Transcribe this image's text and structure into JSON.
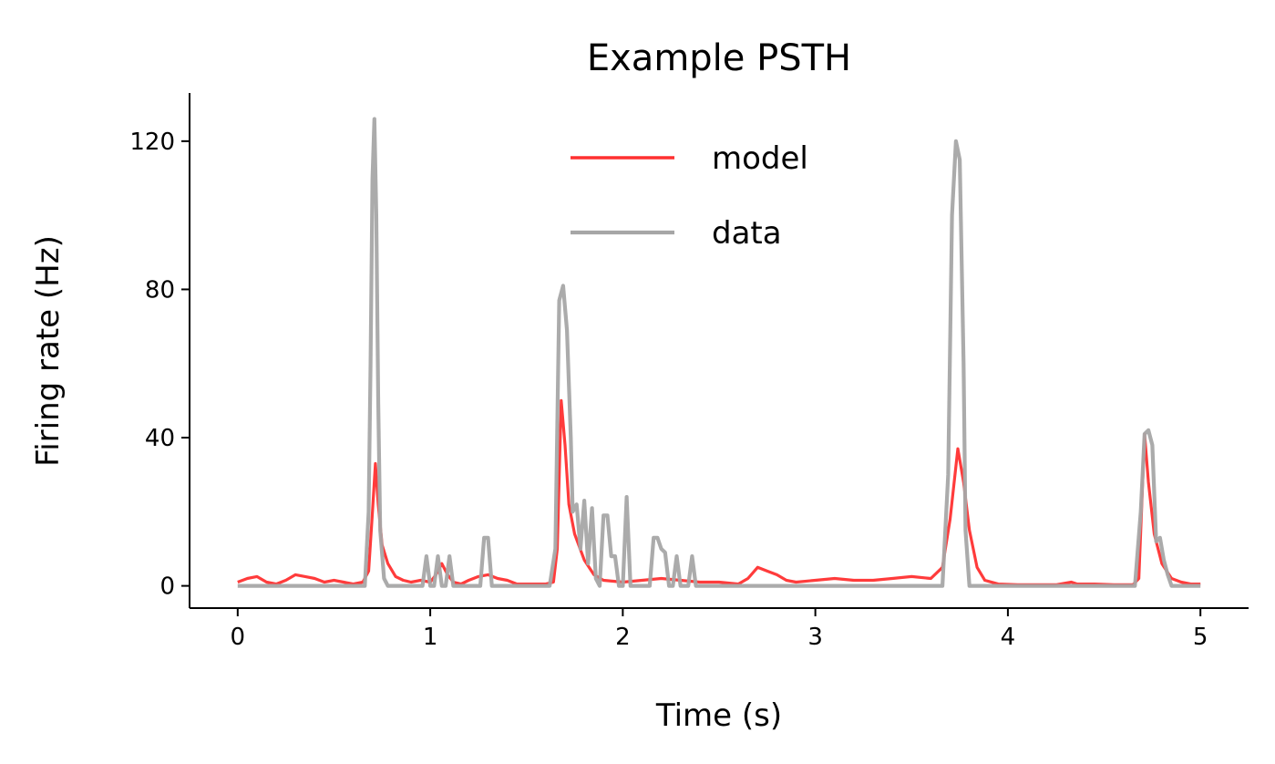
{
  "chart_data": {
    "type": "line",
    "title": "Example PSTH",
    "xlabel": "Time (s)",
    "ylabel": "Firing rate (Hz)",
    "xlim": [
      -0.25,
      5.25
    ],
    "ylim": [
      -6,
      133
    ],
    "xticks": [
      0,
      1,
      2,
      3,
      4,
      5
    ],
    "yticks": [
      0,
      40,
      80,
      120
    ],
    "grid": false,
    "legend": "upper-center",
    "series": [
      {
        "name": "model",
        "color": "#ff3030",
        "points": [
          [
            0.0,
            1
          ],
          [
            0.05,
            2
          ],
          [
            0.1,
            2.5
          ],
          [
            0.15,
            1
          ],
          [
            0.2,
            0.5
          ],
          [
            0.25,
            1.5
          ],
          [
            0.3,
            3
          ],
          [
            0.35,
            2.5
          ],
          [
            0.4,
            2
          ],
          [
            0.45,
            1
          ],
          [
            0.5,
            1.5
          ],
          [
            0.55,
            1
          ],
          [
            0.6,
            0.5
          ],
          [
            0.65,
            1
          ],
          [
            0.68,
            4
          ],
          [
            0.7,
            20
          ],
          [
            0.715,
            33
          ],
          [
            0.73,
            22
          ],
          [
            0.75,
            11
          ],
          [
            0.78,
            6
          ],
          [
            0.82,
            2.5
          ],
          [
            0.86,
            1.5
          ],
          [
            0.9,
            1
          ],
          [
            0.95,
            1.5
          ],
          [
            1.0,
            1
          ],
          [
            1.03,
            3
          ],
          [
            1.06,
            6
          ],
          [
            1.09,
            3
          ],
          [
            1.12,
            1
          ],
          [
            1.16,
            0.5
          ],
          [
            1.2,
            1.5
          ],
          [
            1.25,
            2.5
          ],
          [
            1.3,
            3
          ],
          [
            1.35,
            2
          ],
          [
            1.4,
            1.5
          ],
          [
            1.45,
            0.5
          ],
          [
            1.5,
            0.5
          ],
          [
            1.55,
            0.5
          ],
          [
            1.6,
            0.5
          ],
          [
            1.64,
            1
          ],
          [
            1.66,
            10
          ],
          [
            1.68,
            50
          ],
          [
            1.7,
            38
          ],
          [
            1.72,
            22
          ],
          [
            1.75,
            14
          ],
          [
            1.8,
            7
          ],
          [
            1.85,
            3
          ],
          [
            1.9,
            1.5
          ],
          [
            2.0,
            1
          ],
          [
            2.1,
            1.5
          ],
          [
            2.2,
            2
          ],
          [
            2.3,
            1.5
          ],
          [
            2.4,
            1
          ],
          [
            2.5,
            1
          ],
          [
            2.6,
            0.5
          ],
          [
            2.65,
            2
          ],
          [
            2.7,
            5
          ],
          [
            2.75,
            4
          ],
          [
            2.8,
            3
          ],
          [
            2.85,
            1.5
          ],
          [
            2.9,
            1
          ],
          [
            3.0,
            1.5
          ],
          [
            3.1,
            2
          ],
          [
            3.2,
            1.5
          ],
          [
            3.3,
            1.5
          ],
          [
            3.4,
            2
          ],
          [
            3.5,
            2.5
          ],
          [
            3.6,
            2
          ],
          [
            3.66,
            5
          ],
          [
            3.7,
            18
          ],
          [
            3.74,
            37
          ],
          [
            3.77,
            28
          ],
          [
            3.8,
            15
          ],
          [
            3.84,
            5
          ],
          [
            3.88,
            1.5
          ],
          [
            3.95,
            0.5
          ],
          [
            4.05,
            0.3
          ],
          [
            4.15,
            0.3
          ],
          [
            4.25,
            0.3
          ],
          [
            4.33,
            1
          ],
          [
            4.36,
            0.5
          ],
          [
            4.45,
            0.5
          ],
          [
            4.55,
            0.3
          ],
          [
            4.65,
            0.3
          ],
          [
            4.68,
            2
          ],
          [
            4.71,
            41
          ],
          [
            4.73,
            28
          ],
          [
            4.76,
            14
          ],
          [
            4.8,
            6
          ],
          [
            4.85,
            2
          ],
          [
            4.9,
            1
          ],
          [
            4.95,
            0.5
          ],
          [
            5.0,
            0.5
          ]
        ]
      },
      {
        "name": "data",
        "color": "#a6a6a6",
        "points": [
          [
            0.0,
            0
          ],
          [
            0.6,
            0
          ],
          [
            0.66,
            0
          ],
          [
            0.68,
            20
          ],
          [
            0.69,
            60
          ],
          [
            0.7,
            110
          ],
          [
            0.71,
            126
          ],
          [
            0.72,
            100
          ],
          [
            0.73,
            50
          ],
          [
            0.74,
            15
          ],
          [
            0.76,
            2
          ],
          [
            0.78,
            0
          ],
          [
            0.96,
            0
          ],
          [
            0.98,
            8
          ],
          [
            1.0,
            0
          ],
          [
            1.02,
            0
          ],
          [
            1.04,
            8
          ],
          [
            1.06,
            0
          ],
          [
            1.08,
            0
          ],
          [
            1.1,
            8
          ],
          [
            1.12,
            0
          ],
          [
            1.26,
            0
          ],
          [
            1.28,
            13
          ],
          [
            1.3,
            13
          ],
          [
            1.32,
            0
          ],
          [
            1.62,
            0
          ],
          [
            1.65,
            10
          ],
          [
            1.67,
            77
          ],
          [
            1.69,
            81
          ],
          [
            1.71,
            69
          ],
          [
            1.73,
            40
          ],
          [
            1.74,
            20
          ],
          [
            1.76,
            22
          ],
          [
            1.78,
            10
          ],
          [
            1.8,
            23
          ],
          [
            1.82,
            6
          ],
          [
            1.84,
            21
          ],
          [
            1.86,
            2
          ],
          [
            1.88,
            0
          ],
          [
            1.9,
            19
          ],
          [
            1.92,
            19
          ],
          [
            1.94,
            8
          ],
          [
            1.96,
            8
          ],
          [
            1.98,
            0
          ],
          [
            2.0,
            0
          ],
          [
            2.02,
            24
          ],
          [
            2.04,
            0
          ],
          [
            2.14,
            0
          ],
          [
            2.16,
            13
          ],
          [
            2.18,
            13
          ],
          [
            2.2,
            10
          ],
          [
            2.22,
            9
          ],
          [
            2.24,
            0
          ],
          [
            2.26,
            0
          ],
          [
            2.28,
            8
          ],
          [
            2.3,
            0
          ],
          [
            2.34,
            0
          ],
          [
            2.36,
            8
          ],
          [
            2.38,
            0
          ],
          [
            3.0,
            0
          ],
          [
            3.66,
            0
          ],
          [
            3.69,
            30
          ],
          [
            3.71,
            100
          ],
          [
            3.73,
            120
          ],
          [
            3.75,
            115
          ],
          [
            3.77,
            60
          ],
          [
            3.78,
            15
          ],
          [
            3.8,
            0
          ],
          [
            4.66,
            0
          ],
          [
            4.69,
            20
          ],
          [
            4.71,
            41
          ],
          [
            4.73,
            42
          ],
          [
            4.75,
            38
          ],
          [
            4.77,
            12
          ],
          [
            4.79,
            13
          ],
          [
            4.81,
            7
          ],
          [
            4.83,
            3
          ],
          [
            4.85,
            0
          ],
          [
            5.0,
            0
          ]
        ]
      }
    ]
  }
}
